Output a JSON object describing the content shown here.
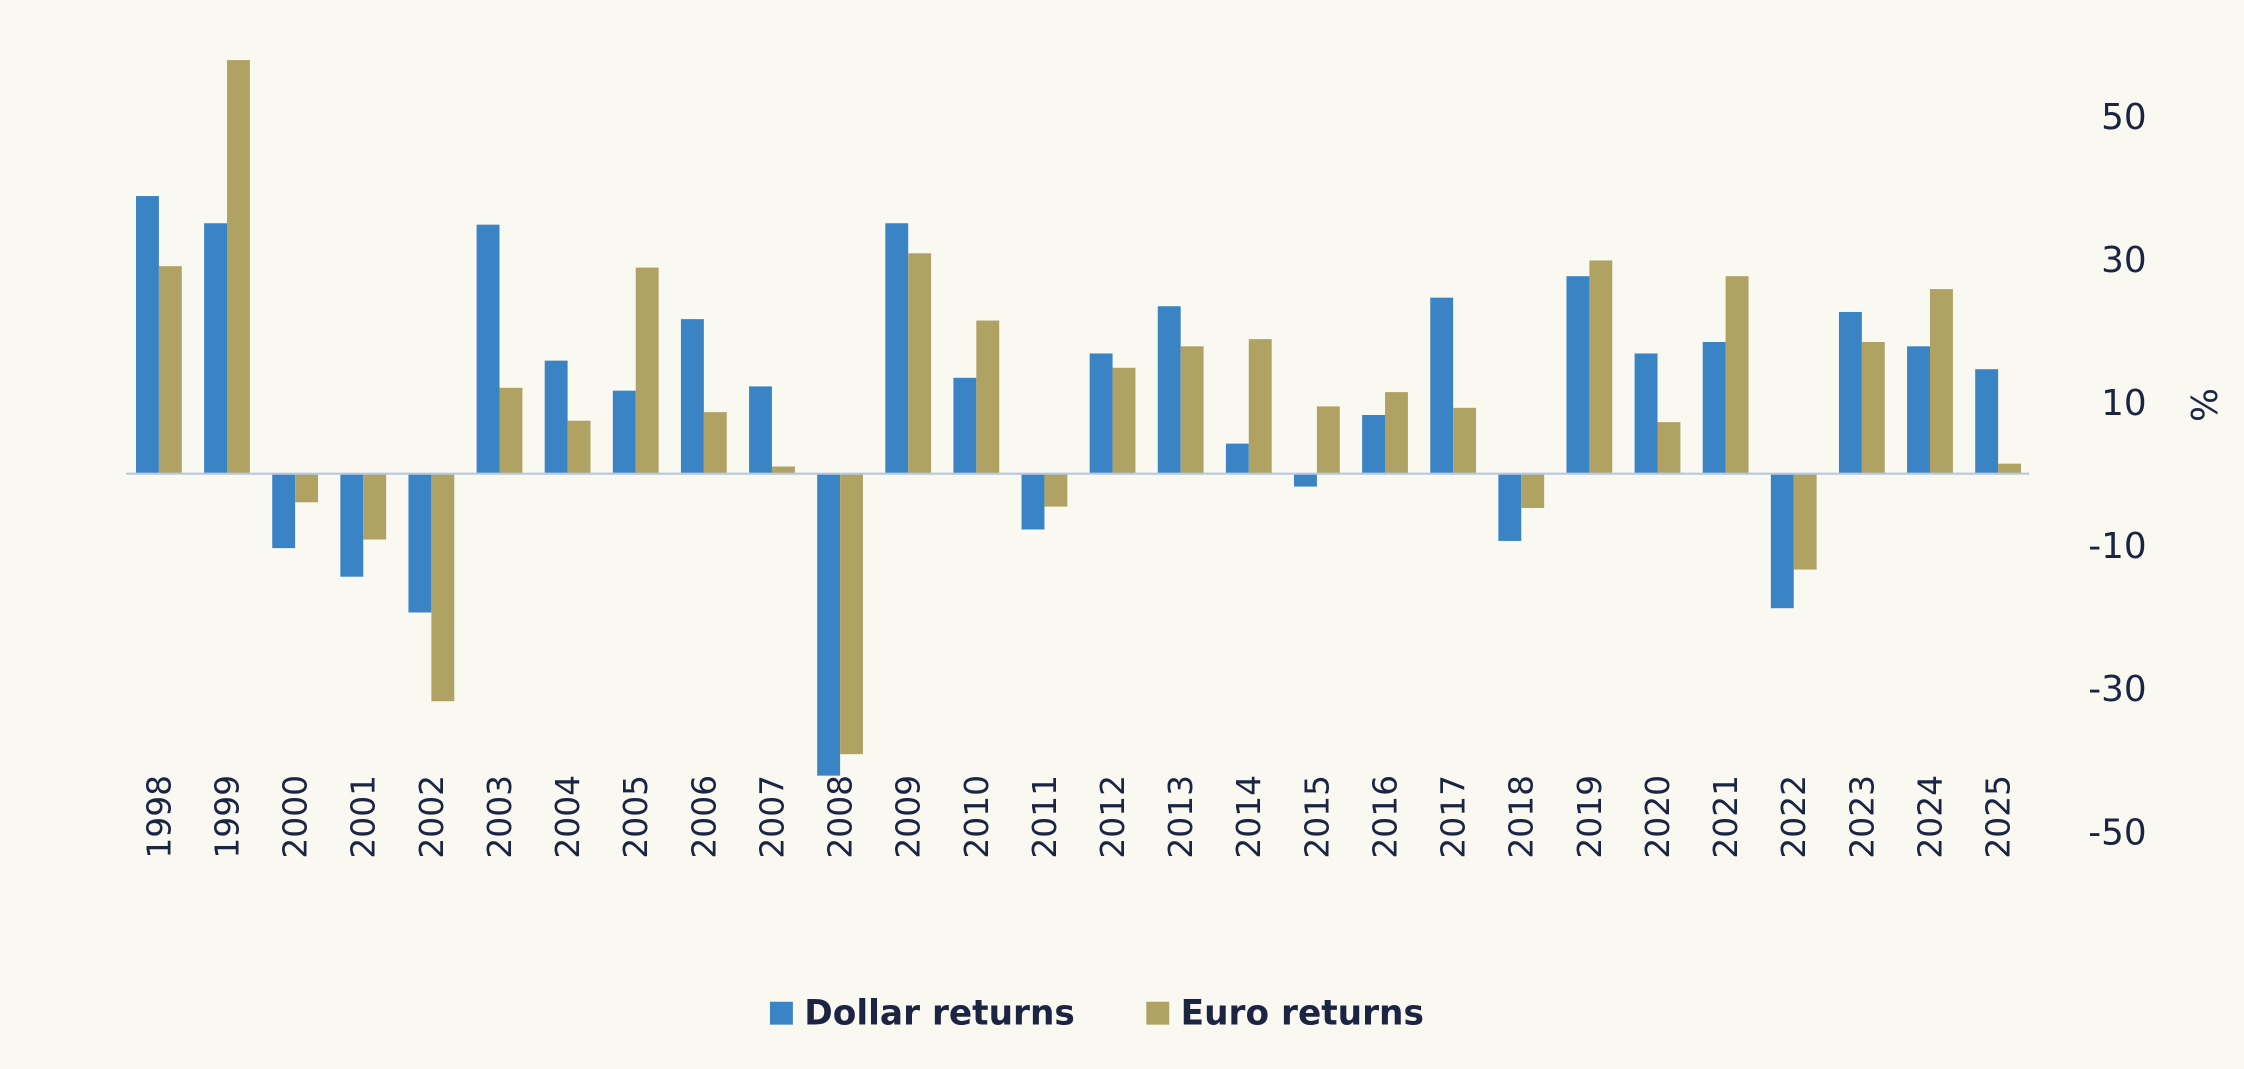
{
  "chart_data": {
    "type": "bar",
    "title": "",
    "xlabel": "",
    "ylabel": "%",
    "ylim": [
      -50,
      57
    ],
    "yticks": [
      50,
      30,
      10,
      -10,
      -30,
      -50
    ],
    "grid": false,
    "legend_placement": "bottom",
    "categories": [
      "1998",
      "1999",
      "2000",
      "2001",
      "2002",
      "2003",
      "2004",
      "2005",
      "2006",
      "2007",
      "2008",
      "2009",
      "2010",
      "2011",
      "2012",
      "2013",
      "2014",
      "2015",
      "2016",
      "2017",
      "2018",
      "2019",
      "2020",
      "2021",
      "2022",
      "2023",
      "2024",
      "2025"
    ],
    "series": [
      {
        "name": "Dollar returns",
        "color": "#3a84c6",
        "values": [
          38.8,
          35.0,
          -10.4,
          -14.4,
          -19.4,
          34.8,
          15.8,
          11.6,
          21.6,
          12.2,
          -42.2,
          35.0,
          13.4,
          -7.8,
          16.8,
          23.4,
          4.2,
          -1.8,
          8.2,
          24.6,
          -9.4,
          27.6,
          16.8,
          18.4,
          -18.8,
          22.6,
          17.8,
          14.6
        ]
      },
      {
        "name": "Euro returns",
        "color": "#b0a263",
        "values": [
          29.0,
          57.8,
          -4.0,
          -9.2,
          -31.8,
          12.0,
          7.4,
          28.8,
          8.6,
          1.0,
          -39.2,
          30.8,
          21.4,
          -4.6,
          14.8,
          17.8,
          18.8,
          9.4,
          11.4,
          9.2,
          -4.8,
          29.8,
          7.2,
          27.6,
          -13.4,
          18.4,
          25.8,
          1.4
        ]
      }
    ]
  }
}
